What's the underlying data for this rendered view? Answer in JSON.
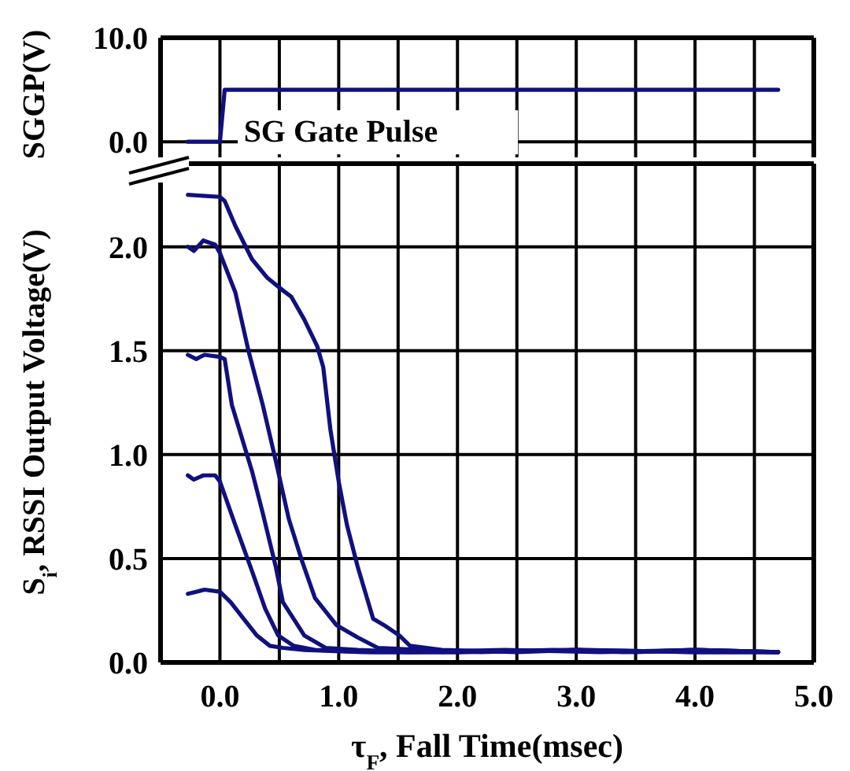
{
  "chart_data": [
    {
      "type": "line",
      "ylabel": "SGGP(V)",
      "annotations": [
        "SG Gate Pulse"
      ],
      "xlim": [
        -0.5,
        5.0
      ],
      "xticks": [
        {
          "value": 0,
          "label": null
        },
        {
          "value": 0.5,
          "label": null
        },
        {
          "value": 1,
          "label": null
        },
        {
          "value": 1.5,
          "label": null
        },
        {
          "value": 2,
          "label": null
        },
        {
          "value": 2.5,
          "label": null
        },
        {
          "value": 3,
          "label": null
        },
        {
          "value": 3.5,
          "label": null
        },
        {
          "value": 4,
          "label": null
        },
        {
          "value": 4.5,
          "label": null
        },
        {
          "value": 5,
          "label": null
        }
      ],
      "ylim": [
        -1.5,
        10
      ],
      "yticks": [
        {
          "value": 0,
          "label": "0.0"
        },
        {
          "value": 10,
          "label": "10.0"
        }
      ],
      "grid": true,
      "tick_labels": "y",
      "line_style": "solid",
      "marker": "none",
      "series": [
        {
          "color": "#10107f",
          "x": [
            -0.27,
            0.0,
            0.04,
            1.0,
            2.0,
            3.0,
            4.0,
            4.7
          ],
          "values": [
            0,
            0,
            5,
            5,
            5,
            5,
            5,
            5
          ]
        }
      ]
    },
    {
      "type": "line",
      "xlabel": "τ$_{F}$, Fall Time(msec)",
      "ylabel": "S$_{i}$, RSSI Output Voltage(V)",
      "xlim": [
        -0.5,
        5.0
      ],
      "xticks": [
        {
          "value": 0,
          "label": "0.0"
        },
        {
          "value": 0.5,
          "label": null
        },
        {
          "value": 1,
          "label": "1.0"
        },
        {
          "value": 1.5,
          "label": null
        },
        {
          "value": 2,
          "label": "2.0"
        },
        {
          "value": 2.5,
          "label": null
        },
        {
          "value": 3,
          "label": "3.0"
        },
        {
          "value": 3.5,
          "label": null
        },
        {
          "value": 4,
          "label": "4.0"
        },
        {
          "value": 4.5,
          "label": null
        },
        {
          "value": 5,
          "label": "5.0"
        }
      ],
      "ylim": [
        0,
        2.4
      ],
      "yticks": [
        {
          "value": 0,
          "label": "0.0"
        },
        {
          "value": 0.5,
          "label": "0.5"
        },
        {
          "value": 1,
          "label": "1.0"
        },
        {
          "value": 1.5,
          "label": "1.5"
        },
        {
          "value": 2,
          "label": "2.0"
        }
      ],
      "grid": true,
      "line_style": "solid",
      "marker": "none",
      "series": [
        {
          "color": "#10107f",
          "x": [
            -0.27,
            0.0,
            0.04,
            0.13,
            0.27,
            0.4,
            0.53,
            0.6,
            0.71,
            0.82,
            0.87,
            0.93,
            1.0,
            1.07,
            1.16,
            1.29,
            1.38,
            1.51,
            1.6,
            1.87,
            2.5,
            3.0,
            3.5,
            4.0,
            4.7
          ],
          "values": [
            2.25,
            2.24,
            2.22,
            2.1,
            1.94,
            1.85,
            1.79,
            1.76,
            1.65,
            1.52,
            1.42,
            1.12,
            0.87,
            0.66,
            0.46,
            0.21,
            0.18,
            0.13,
            0.08,
            0.06,
            0.05,
            0.06,
            0.05,
            0.06,
            0.05
          ]
        },
        {
          "color": "#10107f",
          "x": [
            -0.27,
            -0.22,
            -0.14,
            -0.04,
            0.0,
            0.13,
            0.24,
            0.36,
            0.47,
            0.58,
            0.69,
            0.8,
            0.98,
            1.16,
            1.33,
            1.69,
            2.2,
            2.8,
            3.4,
            4.0,
            4.7
          ],
          "values": [
            2.0,
            1.98,
            2.03,
            2.01,
            1.97,
            1.78,
            1.5,
            1.24,
            0.97,
            0.69,
            0.49,
            0.31,
            0.18,
            0.12,
            0.07,
            0.06,
            0.05,
            0.06,
            0.05,
            0.06,
            0.05
          ]
        },
        {
          "color": "#10107f",
          "x": [
            -0.27,
            -0.2,
            -0.13,
            0.0,
            0.04,
            0.1,
            0.27,
            0.36,
            0.47,
            0.53,
            0.71,
            0.89,
            1.16,
            1.6,
            2.4,
            3.2,
            4.0,
            4.7
          ],
          "values": [
            1.48,
            1.46,
            1.48,
            1.47,
            1.46,
            1.24,
            0.92,
            0.72,
            0.46,
            0.29,
            0.13,
            0.07,
            0.06,
            0.05,
            0.06,
            0.05,
            0.06,
            0.05
          ]
        },
        {
          "color": "#10107f",
          "x": [
            -0.27,
            -0.22,
            -0.14,
            -0.04,
            0.0,
            0.13,
            0.27,
            0.38,
            0.49,
            0.62,
            0.8,
            1.3,
            2.0,
            3.0,
            4.0,
            4.7
          ],
          "values": [
            0.9,
            0.88,
            0.9,
            0.9,
            0.87,
            0.66,
            0.44,
            0.26,
            0.13,
            0.08,
            0.06,
            0.05,
            0.05,
            0.06,
            0.05,
            0.05
          ]
        },
        {
          "color": "#10107f",
          "x": [
            -0.27,
            -0.2,
            -0.13,
            0.0,
            0.09,
            0.2,
            0.31,
            0.42,
            0.53,
            0.71,
            1.2,
            2.0,
            3.0,
            4.0,
            4.7
          ],
          "values": [
            0.33,
            0.34,
            0.35,
            0.34,
            0.29,
            0.21,
            0.13,
            0.08,
            0.07,
            0.06,
            0.05,
            0.05,
            0.06,
            0.05,
            0.05
          ]
        }
      ]
    }
  ]
}
